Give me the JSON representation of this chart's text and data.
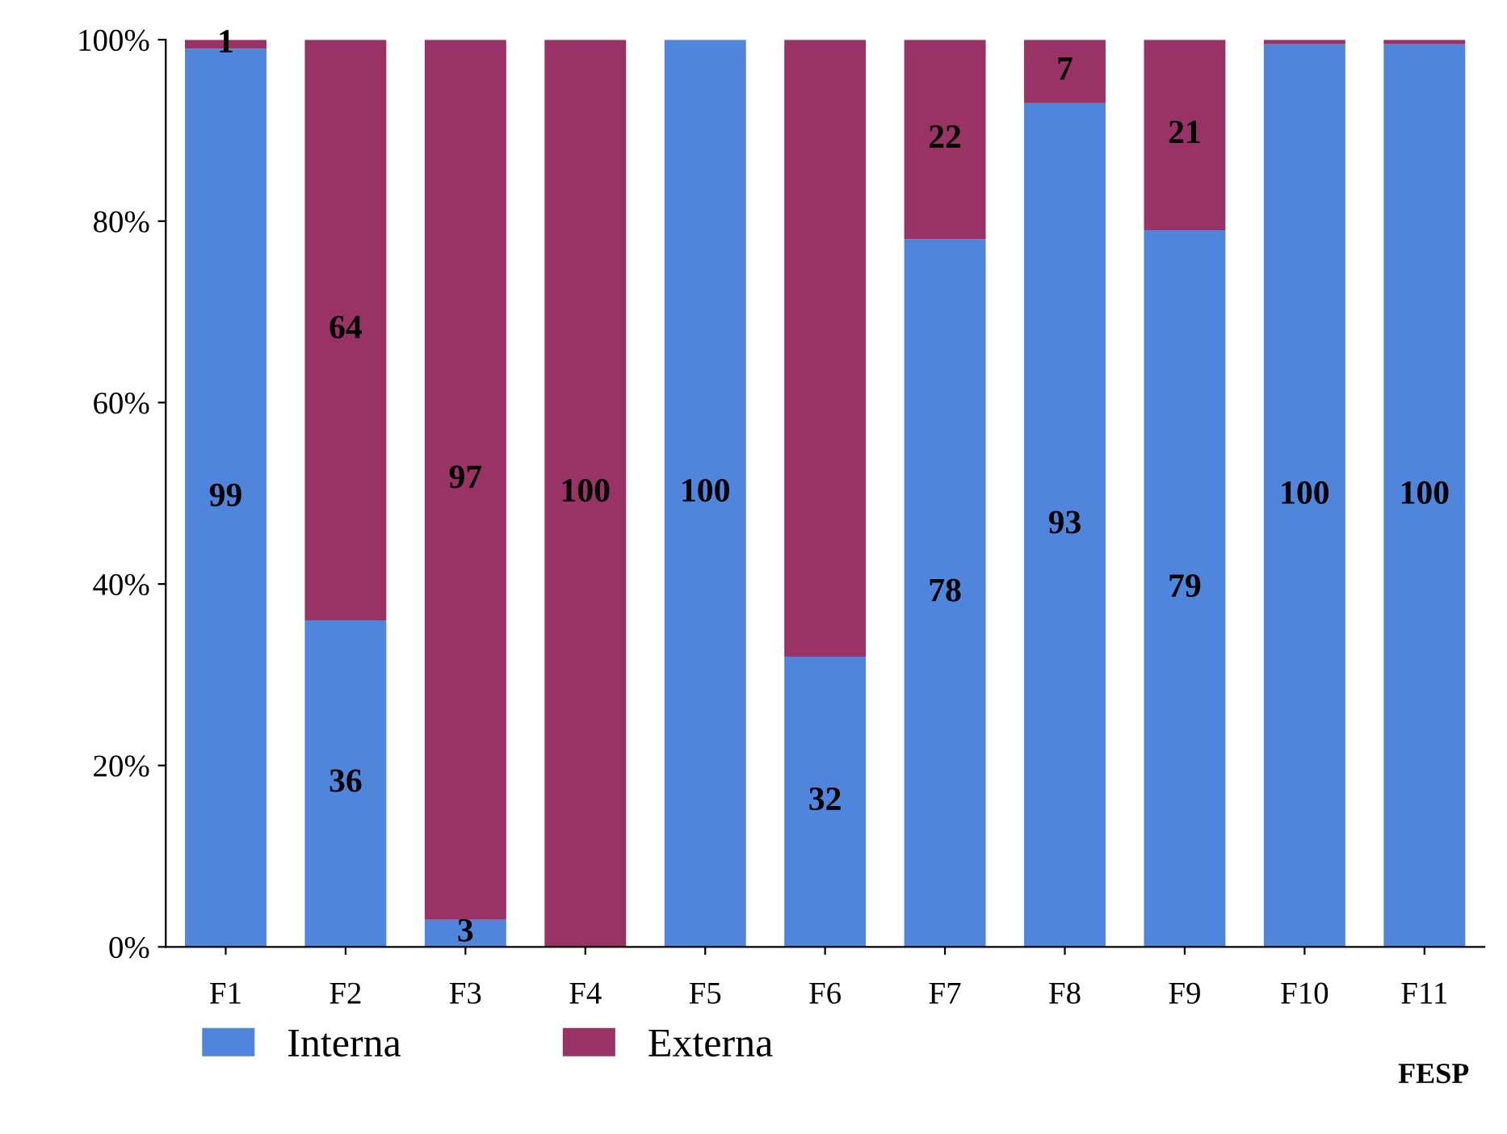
{
  "chart_data": {
    "type": "bar",
    "stacked": true,
    "categories": [
      "F1",
      "F2",
      "F3",
      "F4",
      "F5",
      "F6",
      "F7",
      "F8",
      "F9",
      "F10",
      "F11"
    ],
    "series": [
      {
        "name": "Interna",
        "color": "#4f86dc",
        "values": [
          99,
          36,
          3,
          0,
          100,
          32,
          78,
          93,
          79,
          99.5,
          99.5
        ],
        "value_labels": [
          "99",
          "36",
          "3",
          null,
          "100",
          "32",
          "78",
          "93",
          "79",
          "100",
          "100"
        ]
      },
      {
        "name": "Externa",
        "color": "#993366",
        "values": [
          1,
          64,
          97,
          100,
          0,
          68,
          22,
          7,
          21,
          0.5,
          0.5
        ],
        "value_labels": [
          "1",
          "64",
          "97",
          "100",
          null,
          null,
          "22",
          "7",
          "21",
          null,
          null
        ]
      }
    ],
    "ylim": [
      0,
      100
    ],
    "yticks": [
      {
        "value": 0,
        "label": "0%"
      },
      {
        "value": 20,
        "label": "20%"
      },
      {
        "value": 40,
        "label": "40%"
      },
      {
        "value": 60,
        "label": "60%"
      },
      {
        "value": 80,
        "label": "80%"
      },
      {
        "value": 100,
        "label": "100%"
      }
    ],
    "grid": false,
    "legend": "bottom",
    "annotations": [
      "FESP"
    ]
  }
}
